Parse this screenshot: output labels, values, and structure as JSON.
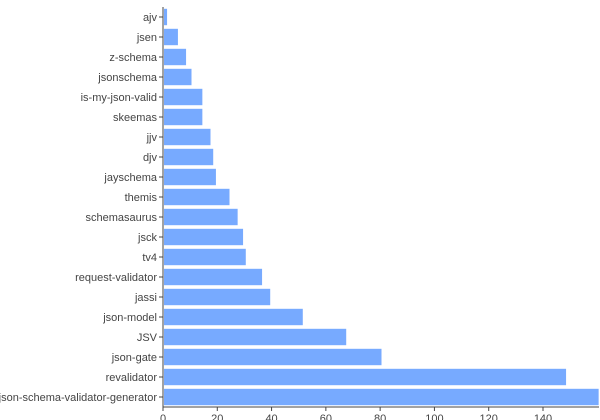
{
  "chart_data": {
    "type": "bar",
    "orientation": "horizontal",
    "categories": [
      "ajv",
      "jsen",
      "z-schema",
      "jsonschema",
      "is-my-json-valid",
      "skeemas",
      "jjv",
      "djv",
      "jayschema",
      "themis",
      "schemasaurus",
      "jsck",
      "tv4",
      "request-validator",
      "jassi",
      "json-model",
      "JSV",
      "json-gate",
      "revalidator",
      "json-schema-validator-generator"
    ],
    "values": [
      1.5,
      5.5,
      8.5,
      10.5,
      14.5,
      14.5,
      17.5,
      18.5,
      19.5,
      24.5,
      27.5,
      29.5,
      30.5,
      36.5,
      39.5,
      51.5,
      67.5,
      80.5,
      148.5,
      160.5
    ],
    "xlim": [
      0,
      160
    ],
    "xticks": [
      "0",
      "20",
      "40",
      "60",
      "80",
      "100",
      "120",
      "140"
    ],
    "title": "",
    "xlabel": "",
    "ylabel": "",
    "grid": false,
    "legend": "none",
    "colors": {
      "bar": "#77aaff",
      "axis": "#444444",
      "text": "#444444",
      "background": "#ffffff"
    }
  }
}
